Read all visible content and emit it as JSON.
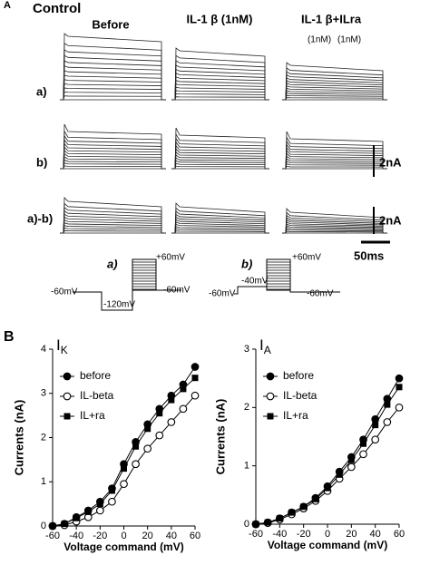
{
  "panel_a": {
    "label": "A",
    "condition": "Control",
    "columns": [
      "Before",
      "IL-1 β (1nM)",
      "IL-1 β+ILra"
    ],
    "column_notes": [
      "(1nM)",
      "(1nM)"
    ],
    "rows": [
      "a)",
      "b)",
      "a)-b)"
    ],
    "scale_bars": [
      "2nA",
      "2nA",
      "50ms"
    ],
    "protocols": [
      {
        "label": "a)",
        "levels": [
          "+60mV",
          "-60mV",
          "-60mV",
          "-120mV"
        ]
      },
      {
        "label": "b)",
        "levels": [
          "+60mV",
          "-40mV",
          "-60mV",
          "-60mV"
        ]
      }
    ]
  },
  "panel_b_label": "B",
  "chart_data": [
    {
      "type": "line",
      "title": "I",
      "title_subscript": "K",
      "x_label": "Voltage command (mV)",
      "y_label": "Currents  (nA)",
      "x": [
        -60,
        -50,
        -40,
        -30,
        -20,
        -10,
        0,
        10,
        20,
        30,
        40,
        50,
        60
      ],
      "xlim": [
        -60,
        60
      ],
      "xticks": [
        -60,
        -40,
        -20,
        0,
        20,
        40,
        60
      ],
      "ylim": [
        0,
        4
      ],
      "yticks": [
        0,
        1,
        2,
        3,
        4
      ],
      "series": [
        {
          "name": "before",
          "color": "#000000",
          "marker": "circle",
          "values": [
            0,
            0.05,
            0.2,
            0.35,
            0.55,
            0.85,
            1.4,
            1.9,
            2.3,
            2.65,
            2.95,
            3.2,
            3.6
          ]
        },
        {
          "name": "IL-beta",
          "color": "#000000",
          "marker": "open-circle",
          "values": [
            0,
            0.02,
            0.1,
            0.2,
            0.35,
            0.55,
            0.95,
            1.4,
            1.75,
            2.05,
            2.35,
            2.65,
            2.95
          ]
        },
        {
          "name": "IL+ra",
          "color": "#000000",
          "marker": "square",
          "values": [
            0,
            0.05,
            0.18,
            0.32,
            0.5,
            0.8,
            1.3,
            1.8,
            2.2,
            2.55,
            2.85,
            3.1,
            3.35
          ]
        }
      ]
    },
    {
      "type": "line",
      "title": "I",
      "title_subscript": "A",
      "x_label": "Voltage command (mV)",
      "y_label": "Currents  (nA)",
      "x": [
        -60,
        -50,
        -40,
        -30,
        -20,
        -10,
        0,
        10,
        20,
        30,
        40,
        50,
        60
      ],
      "xlim": [
        -60,
        60
      ],
      "xticks": [
        -60,
        -40,
        -20,
        0,
        20,
        40,
        60
      ],
      "ylim": [
        0,
        3
      ],
      "yticks": [
        0,
        1,
        2,
        3
      ],
      "series": [
        {
          "name": "before",
          "color": "#000000",
          "marker": "circle",
          "values": [
            0,
            0.03,
            0.1,
            0.2,
            0.3,
            0.45,
            0.65,
            0.9,
            1.15,
            1.45,
            1.8,
            2.15,
            2.5
          ]
        },
        {
          "name": "IL-beta",
          "color": "#000000",
          "marker": "open-circle",
          "values": [
            0,
            0.02,
            0.08,
            0.17,
            0.27,
            0.4,
            0.57,
            0.78,
            0.98,
            1.2,
            1.45,
            1.75,
            2.0
          ]
        },
        {
          "name": "IL+ra",
          "color": "#000000",
          "marker": "square",
          "values": [
            0,
            0.03,
            0.1,
            0.2,
            0.3,
            0.43,
            0.62,
            0.85,
            1.1,
            1.38,
            1.7,
            2.05,
            2.35
          ]
        }
      ]
    }
  ]
}
